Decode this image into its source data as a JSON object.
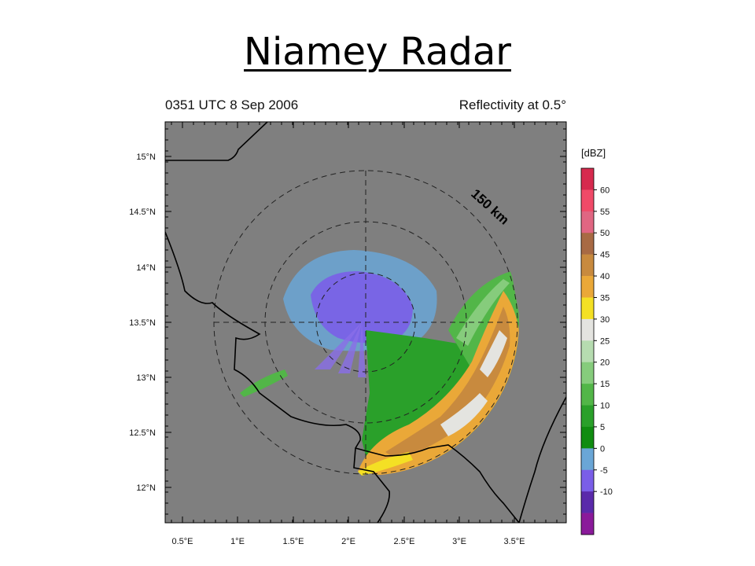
{
  "title": "Niamey Radar",
  "header": {
    "time": "0351 UTC 8 Sep 2006",
    "field": "Reflectivity at 0.5°"
  },
  "ring_label": "150 km",
  "lat_labels": [
    "15°N",
    "14.5°N",
    "14°N",
    "13.5°N",
    "13°N",
    "12.5°N",
    "12°N"
  ],
  "lon_labels": [
    "0.5°E",
    "1°E",
    "1.5°E",
    "2°E",
    "2.5°E",
    "3°E",
    "3.5°E"
  ],
  "colorbar": {
    "unit": "[dBZ]",
    "labels": [
      "60",
      "55",
      "50",
      "45",
      "40",
      "35",
      "30",
      "25",
      "20",
      "15",
      "10",
      "5",
      "0",
      "-5",
      "-10"
    ],
    "colors": [
      "#d62a4e",
      "#f04a68",
      "#e06682",
      "#a86a44",
      "#c88a3e",
      "#eaa838",
      "#f4e024",
      "#e4e4e0",
      "#b6dcb0",
      "#86cc7c",
      "#52b648",
      "#2aa02a",
      "#108c10",
      "#6aa6d6",
      "#7a5ee8",
      "#5a2aaa",
      "#8a1a9a"
    ]
  },
  "colors": {
    "map_background": "#7f7f7f",
    "border_line": "#000000"
  }
}
